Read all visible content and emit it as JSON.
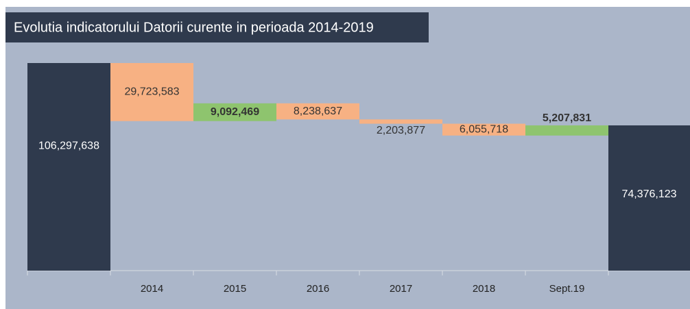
{
  "chart_data": {
    "type": "waterfall",
    "title": "Evolutia indicatorului Datorii curente in perioada 2014-2019",
    "categories": [
      null,
      "2014",
      "2015",
      "2016",
      "2017",
      "2018",
      "Sept.19",
      null
    ],
    "values": [
      106297638,
      -29723583,
      9092469,
      -8238637,
      -2203877,
      -6055718,
      5207831,
      74376123
    ],
    "value_labels": [
      "106,297,638",
      "29,723,583",
      "9,092,469",
      "8,238,637",
      "2,203,877",
      "6,055,718",
      "5,207,831",
      "74,376,123"
    ],
    "measure": [
      "absolute",
      "relative",
      "relative",
      "relative",
      "relative",
      "relative",
      "relative",
      "total"
    ],
    "total_color": "#2f3a4d",
    "decrease_color": "#f7b183",
    "increase_color": "#8ec46e"
  }
}
